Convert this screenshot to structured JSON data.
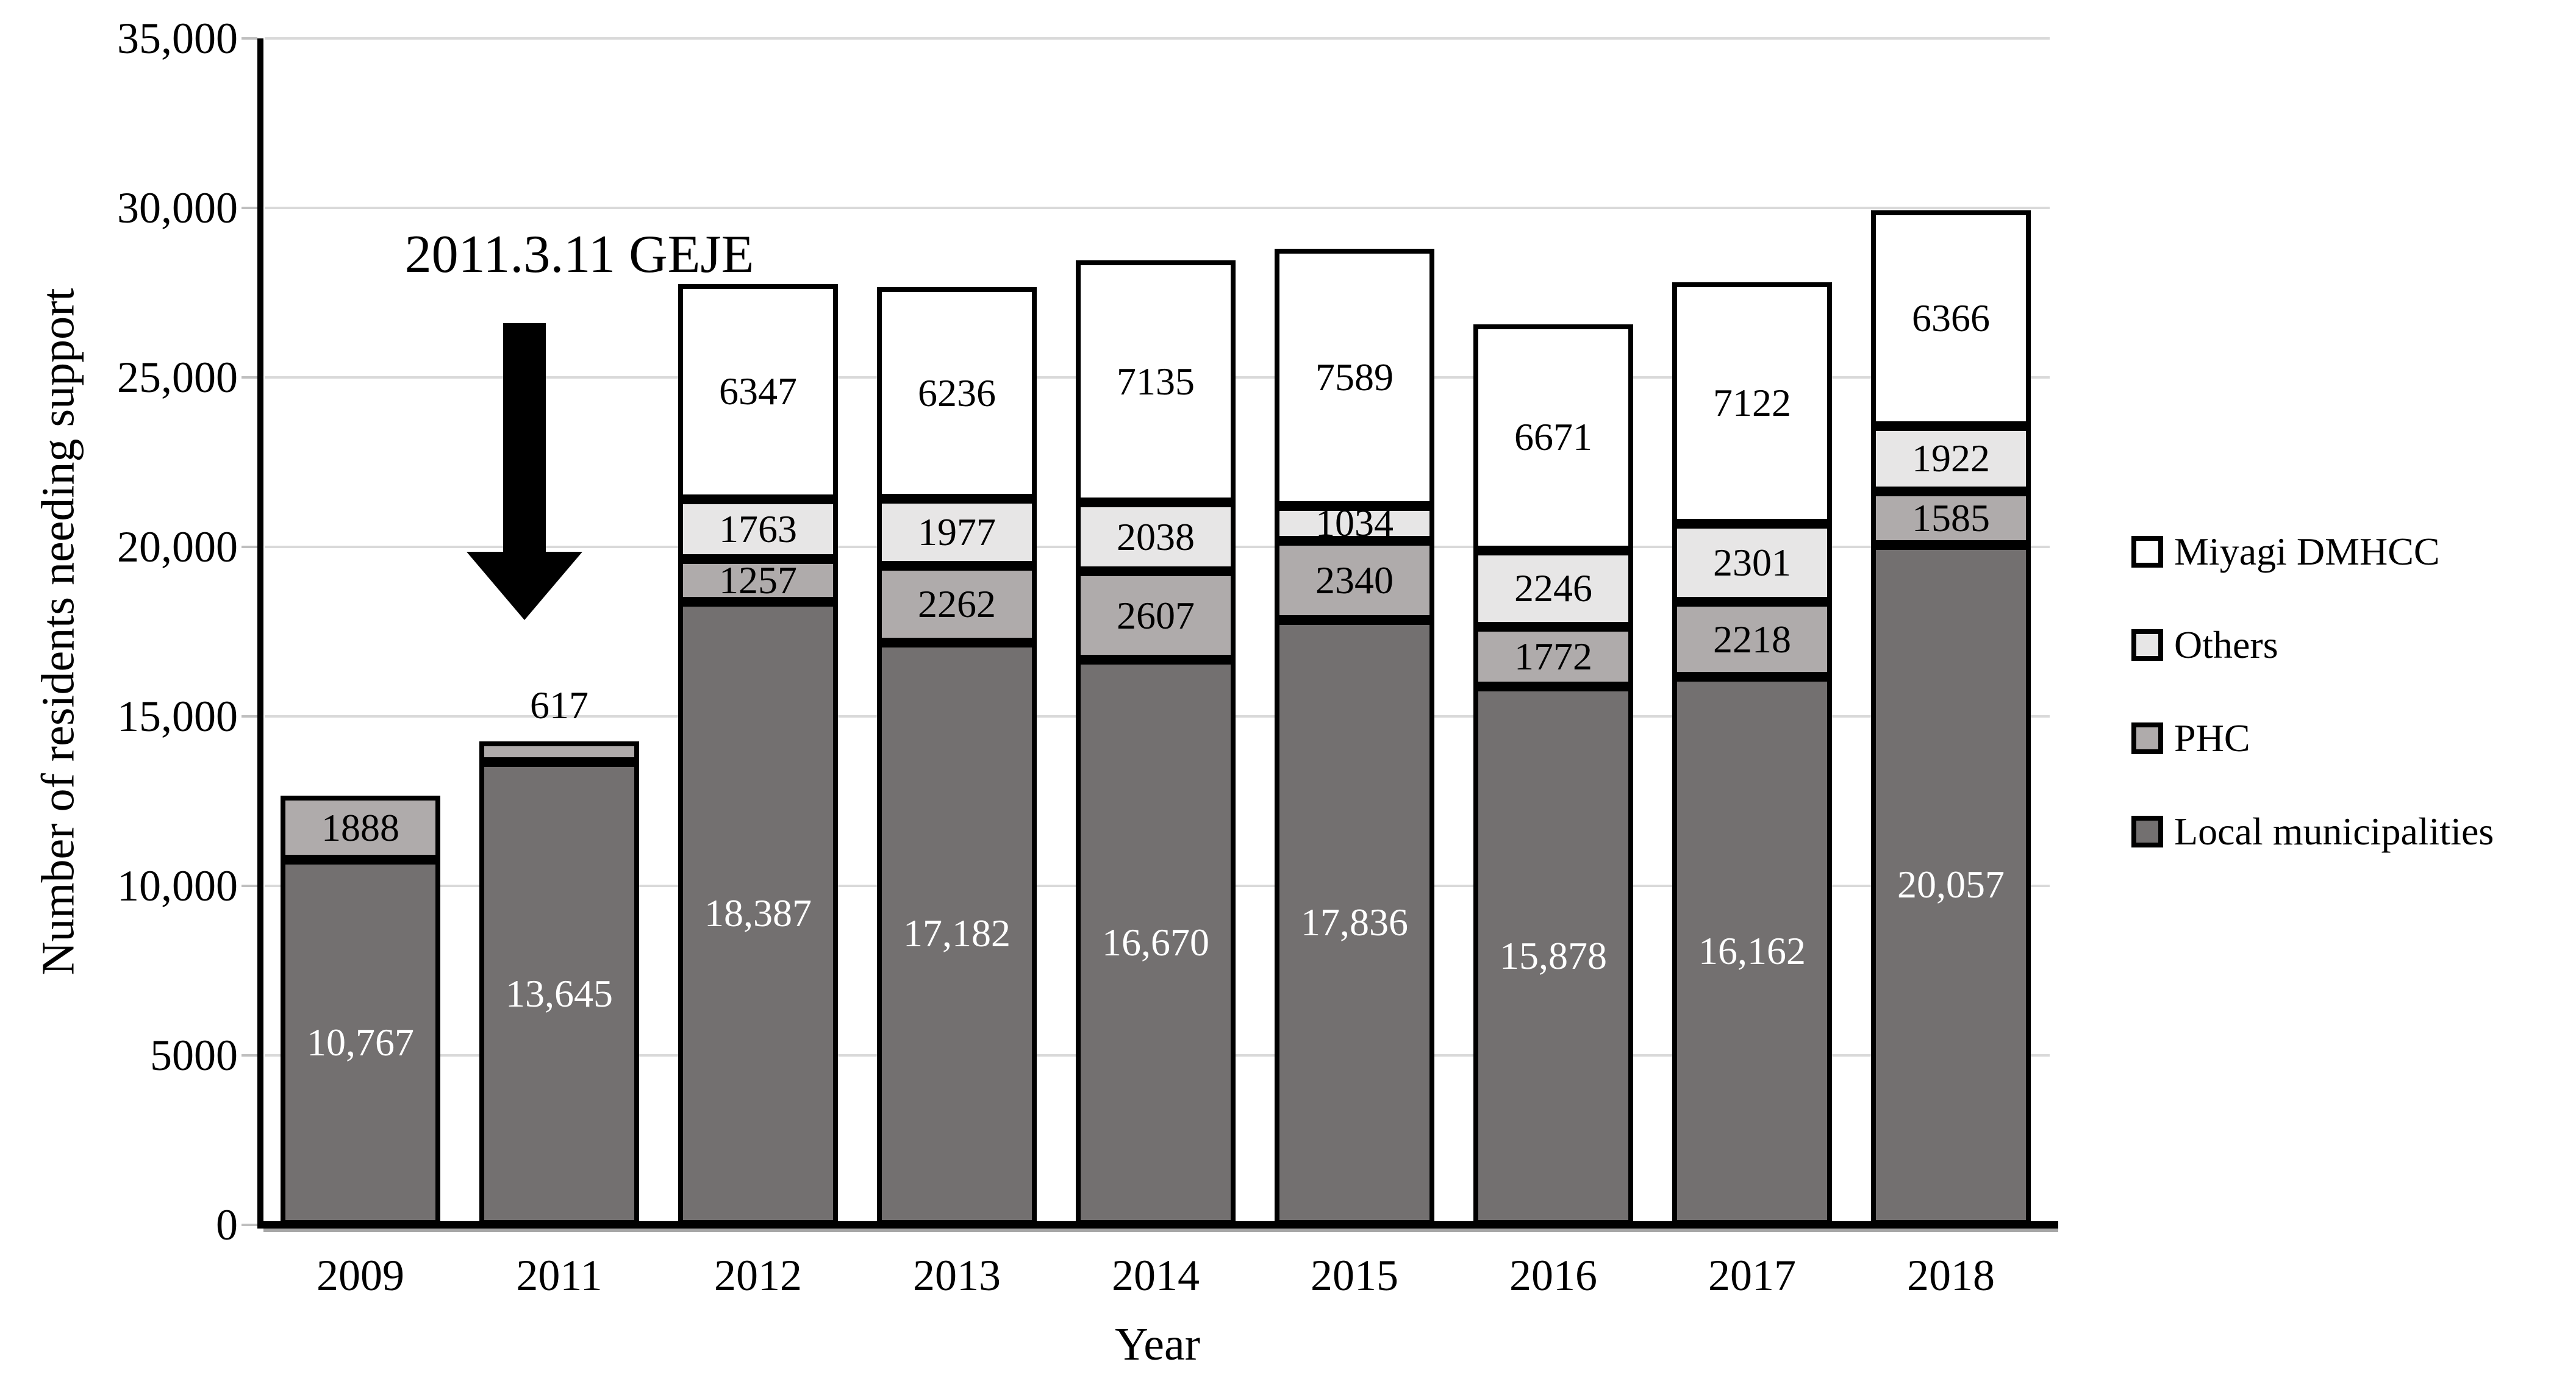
{
  "chart_data": {
    "type": "bar",
    "stacked": true,
    "title": "",
    "xlabel": "Year",
    "ylabel": "Number of residents needing support",
    "ylim": [
      0,
      35000
    ],
    "grid": true,
    "legend_position": "right",
    "categories": [
      "2009",
      "2011",
      "2012",
      "2013",
      "2014",
      "2015",
      "2016",
      "2017",
      "2018"
    ],
    "y_ticks": [
      "35,000",
      "30,000",
      "25,000",
      "20,000",
      "15,000",
      "10,000",
      "5000",
      "0"
    ],
    "y_tick_values": [
      35000,
      30000,
      25000,
      20000,
      15000,
      10000,
      5000,
      0
    ],
    "annotation": {
      "text": "2011.3.11 GEJE",
      "arrow": "down"
    },
    "series": [
      {
        "name": "Local municipalities",
        "color": "#737070",
        "label_color": "#ffffff",
        "values": [
          10767,
          13645,
          18387,
          17182,
          16670,
          17836,
          15878,
          16162,
          20057
        ],
        "labels": [
          "10,767",
          "13,645",
          "18,387",
          "17,182",
          "16,670",
          "17,836",
          "15,878",
          "16,162",
          "20,057"
        ]
      },
      {
        "name": "PHC",
        "color": "#AFABAB",
        "label_color": "#000000",
        "values": [
          1888,
          617,
          1257,
          2262,
          2607,
          2340,
          1772,
          2218,
          1585
        ],
        "labels": [
          "1888",
          "617",
          "1257",
          "2262",
          "2607",
          "2340",
          "1772",
          "2218",
          "1585"
        ]
      },
      {
        "name": "Others",
        "color": "#E7E6E6",
        "label_color": "#000000",
        "values": [
          0,
          0,
          1763,
          1977,
          2038,
          1034,
          2246,
          2301,
          1922
        ],
        "labels": [
          null,
          null,
          "1763",
          "1977",
          "2038",
          "1034",
          "2246",
          "2301",
          "1922"
        ]
      },
      {
        "name": "Miyagi DMHCC",
        "color": "#FFFFFF",
        "label_color": "#000000",
        "values": [
          0,
          0,
          6347,
          6236,
          7135,
          7589,
          6671,
          7122,
          6366
        ],
        "labels": [
          null,
          null,
          "6347",
          "6236",
          "7135",
          "7589",
          "6671",
          "7122",
          "6366"
        ]
      }
    ],
    "totals": [
      12655,
      14262,
      27754,
      27657,
      28450,
      28799,
      26567,
      27803,
      29930
    ]
  },
  "legend": {
    "items": [
      {
        "label": "Miyagi DMHCC",
        "color": "#FFFFFF"
      },
      {
        "label": "Others",
        "color": "#E7E6E6"
      },
      {
        "label": "PHC",
        "color": "#AFABAB"
      },
      {
        "label": "Local municipalities",
        "color": "#737070"
      }
    ]
  },
  "colors": {
    "gridline": "#D9D9D9",
    "axis": "#000000",
    "baseline_shadow": "#A6A6A6",
    "arrow": "#000000",
    "bar_border": "#000000"
  }
}
